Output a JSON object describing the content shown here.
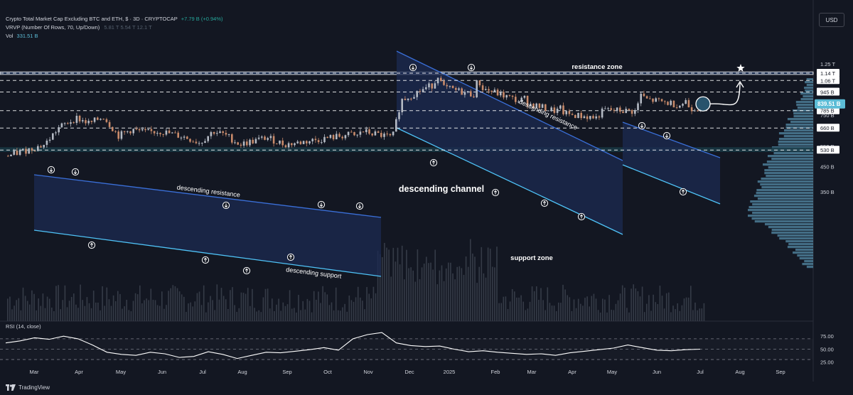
{
  "header": {
    "symbol_line": "Crypto Total Market Cap Excluding BTC and ETH, $ · 3D · CRYPTOCAP",
    "change": "+7.79 B (+0.94%)",
    "vrvp_label": "VRVP (Number Of Rows, 70, Up/Down)",
    "vrvp_values": "5.81 T  5.54 T  12.1 T",
    "vol_label": "Vol",
    "vol_value": "331.51 B"
  },
  "currency_button": "USD",
  "brand": "TradingView",
  "colors": {
    "background": "#131722",
    "up": "#b4bac4",
    "down": "#c88a6a",
    "channel_fill": "#1c2b52",
    "resistance_line": "#3a6fd8",
    "support_line": "#4fc3f7",
    "zone_line": "#ffffff",
    "price_tag": "#5bbcd6"
  },
  "chart_data": {
    "type": "candlestick",
    "y_scale": "log",
    "price_axis_ticks": [
      "1.25 T",
      "1.14 T",
      "1.06 T",
      "945 B",
      "850 B",
      "785 B",
      "750 B",
      "660 B",
      "550 B",
      "530 B",
      "450 B",
      "350 B"
    ],
    "last_price_label": "839.51 B",
    "time_axis_ticks": [
      "Mar",
      "Apr",
      "May",
      "Jun",
      "Jul",
      "Aug",
      "Sep",
      "Oct",
      "Nov",
      "Dec",
      "2025",
      "Feb",
      "Mar",
      "Apr",
      "May",
      "Jun",
      "Jul",
      "Aug",
      "Sep"
    ],
    "horizontal_levels": [
      1140,
      1060,
      945,
      785,
      660,
      530
    ],
    "resistance_zone": [
      1125,
      1155
    ],
    "support_zone": [
      520,
      545
    ],
    "annotations": {
      "resistance_zone": "resistance zone",
      "support_zone": "support zone",
      "descending_resistance_1": "descending resistance",
      "descending_support": "descending support",
      "descending_channel": "descending channel",
      "descending_resistance_2": "descending resistance"
    },
    "close_path": [
      [
        "Mar",
        500
      ],
      [
        "Mar",
        560
      ],
      [
        "Mar",
        660
      ],
      [
        "Apr",
        730
      ],
      [
        "Apr",
        690
      ],
      [
        "Apr",
        740
      ],
      [
        "May",
        610
      ],
      [
        "May",
        650
      ],
      [
        "May",
        630
      ],
      [
        "Jun",
        640
      ],
      [
        "Jun",
        620
      ],
      [
        "Jun",
        600
      ],
      [
        "Jul",
        570
      ],
      [
        "Jul",
        640
      ],
      [
        "Jul",
        610
      ],
      [
        "Aug",
        560
      ],
      [
        "Aug",
        580
      ],
      [
        "Aug",
        600
      ],
      [
        "Sep",
        560
      ],
      [
        "Sep",
        570
      ],
      [
        "Oct",
        620
      ],
      [
        "Oct",
        600
      ],
      [
        "Oct",
        640
      ],
      [
        "Nov",
        600
      ],
      [
        "Nov",
        720
      ],
      [
        "Nov",
        870
      ],
      [
        "Dec",
        1020
      ],
      [
        "Dec",
        1130
      ],
      [
        "Dec",
        990
      ],
      [
        "2025",
        920
      ],
      [
        "2025",
        1070
      ],
      [
        "2025",
        980
      ],
      [
        "Feb",
        860
      ],
      [
        "Feb",
        890
      ],
      [
        "Feb",
        840
      ],
      [
        "Mar",
        780
      ],
      [
        "Mar",
        800
      ],
      [
        "Mar",
        760
      ],
      [
        "Apr",
        730
      ],
      [
        "Apr",
        770
      ],
      [
        "Apr",
        790
      ],
      [
        "May",
        780
      ],
      [
        "May",
        930
      ],
      [
        "May",
        880
      ],
      [
        "Jun",
        830
      ],
      [
        "Jun",
        870
      ],
      [
        "Jun",
        805
      ],
      [
        "Jul",
        810
      ],
      [
        "Jul",
        839.51
      ]
    ],
    "rsi": {
      "label": "RSI (14, close)",
      "ticks": [
        "75.00",
        "50.00",
        "25.00"
      ],
      "levels": [
        70,
        50,
        30
      ],
      "values": [
        62,
        66,
        72,
        69,
        75,
        70,
        58,
        44,
        40,
        38,
        44,
        41,
        34,
        36,
        45,
        40,
        32,
        38,
        44,
        43,
        46,
        49,
        53,
        48,
        70,
        78,
        82,
        62,
        57,
        55,
        56,
        50,
        45,
        47,
        44,
        42,
        40,
        41,
        38,
        43,
        46,
        49,
        52,
        58,
        53,
        48,
        47,
        49,
        50
      ]
    }
  }
}
